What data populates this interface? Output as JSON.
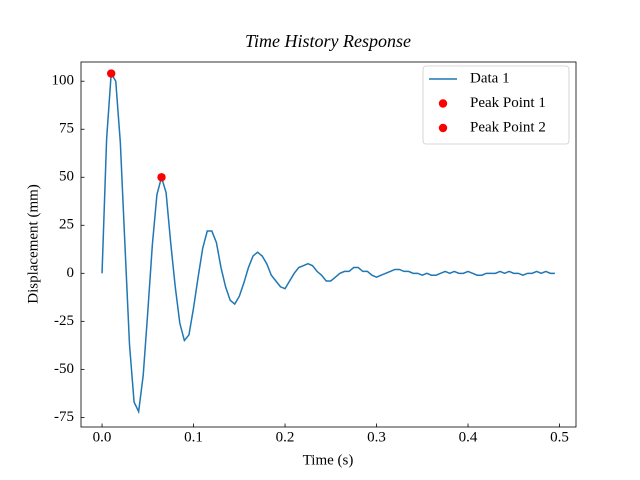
{
  "chart_data": {
    "type": "line",
    "title": "Time History Response",
    "xlabel": "Time (s)",
    "ylabel": "Displacement (mm)",
    "x": [
      0,
      0.005,
      0.01,
      0.015,
      0.02,
      0.025,
      0.03,
      0.035,
      0.04,
      0.045,
      0.05,
      0.055,
      0.06,
      0.065,
      0.07,
      0.075,
      0.08,
      0.085,
      0.09,
      0.095,
      0.1,
      0.105,
      0.11,
      0.115,
      0.12,
      0.125,
      0.13,
      0.135,
      0.14,
      0.145,
      0.15,
      0.155,
      0.16,
      0.165,
      0.17,
      0.175,
      0.18,
      0.185,
      0.19,
      0.195,
      0.2,
      0.205,
      0.21,
      0.215,
      0.22,
      0.225,
      0.23,
      0.235,
      0.24,
      0.245,
      0.25,
      0.255,
      0.26,
      0.265,
      0.27,
      0.275,
      0.28,
      0.285,
      0.29,
      0.295,
      0.3,
      0.305,
      0.31,
      0.315,
      0.32,
      0.325,
      0.33,
      0.335,
      0.34,
      0.345,
      0.35,
      0.355,
      0.36,
      0.365,
      0.37,
      0.375,
      0.38,
      0.385,
      0.39,
      0.395,
      0.4,
      0.405,
      0.41,
      0.415,
      0.42,
      0.425,
      0.43,
      0.435,
      0.44,
      0.445,
      0.45,
      0.455,
      0.46,
      0.465,
      0.47,
      0.475,
      0.48,
      0.485,
      0.49,
      0.495
    ],
    "series": [
      {
        "name": "Data 1",
        "color": "#1f77b4",
        "mode": "line",
        "values": [
          0,
          70,
          104,
          100,
          68,
          15,
          -37,
          -67,
          -72,
          -53,
          -20,
          15,
          41,
          50,
          42,
          16,
          -7,
          -26,
          -35,
          -32,
          -18,
          -2,
          13,
          22,
          22,
          16,
          3,
          -7,
          -14,
          -16,
          -12,
          -5,
          3,
          9,
          11,
          9,
          5,
          -1,
          -4,
          -7,
          -8,
          -4,
          0,
          3,
          4,
          5,
          4,
          1,
          -1,
          -4,
          -4,
          -2,
          0,
          1,
          1,
          3,
          3,
          1,
          1,
          -1,
          -2,
          -1,
          0,
          1,
          2,
          2,
          1,
          1,
          0,
          0,
          -1,
          0,
          -1,
          -1,
          0,
          1,
          0,
          1,
          0,
          0,
          1,
          0,
          -1,
          -1,
          0,
          0,
          0,
          1,
          0,
          1,
          0,
          0,
          -1,
          0,
          0,
          1,
          0,
          1,
          0,
          0
        ]
      },
      {
        "name": "Peak Point 1",
        "color": "#ff0000",
        "mode": "markers",
        "x": [
          0.01
        ],
        "values": [
          104
        ]
      },
      {
        "name": "Peak Point 2",
        "color": "#ff0000",
        "mode": "markers",
        "x": [
          0.065
        ],
        "values": [
          50
        ]
      }
    ],
    "xlim": [
      -0.023,
      0.518
    ],
    "ylim": [
      -80,
      110
    ],
    "xticks": [
      {
        "value": 0,
        "label": "0.0"
      },
      0.1,
      0.2,
      0.3,
      0.4,
      0.5
    ],
    "yticks": [
      -75,
      -50,
      -25,
      0,
      25,
      50,
      75,
      100
    ],
    "legend": "upper right"
  }
}
